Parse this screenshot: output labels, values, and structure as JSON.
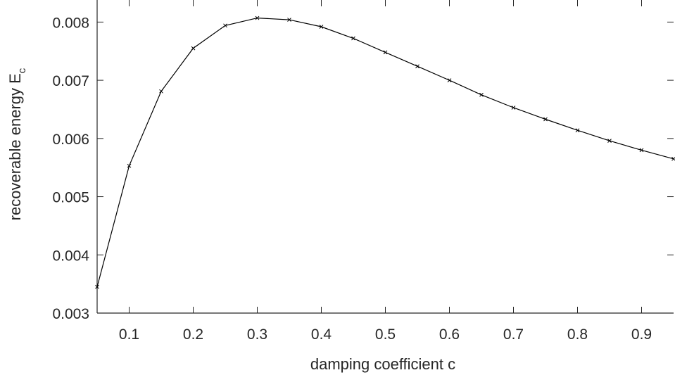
{
  "chart_data": {
    "type": "line",
    "title": "",
    "xlabel": "damping coefficient c",
    "ylabel": {
      "main": "recoverable energy E",
      "subscript": "c"
    },
    "xlim": [
      0.05,
      0.95
    ],
    "ylim": [
      0.003,
      0.0085
    ],
    "x_ticks": [
      "0.1",
      "0.2",
      "0.3",
      "0.4",
      "0.5",
      "0.6",
      "0.7",
      "0.8",
      "0.9"
    ],
    "y_ticks": [
      "0.003",
      "0.004",
      "0.005",
      "0.006",
      "0.007",
      "0.008"
    ],
    "grid": false,
    "marker": "x",
    "line_color": "#000000",
    "series": [
      {
        "x": [
          0.05,
          0.1,
          0.15,
          0.2,
          0.25,
          0.3,
          0.35,
          0.4,
          0.45,
          0.5,
          0.55,
          0.6,
          0.65,
          0.7,
          0.75,
          0.8,
          0.85,
          0.9,
          0.95
        ],
        "values": [
          0.00345,
          0.00553,
          0.00681,
          0.00755,
          0.00794,
          0.00807,
          0.00804,
          0.00792,
          0.00772,
          0.00748,
          0.00724,
          0.007,
          0.00675,
          0.00653,
          0.00633,
          0.00614,
          0.00596,
          0.0058,
          0.00565
        ]
      }
    ]
  }
}
